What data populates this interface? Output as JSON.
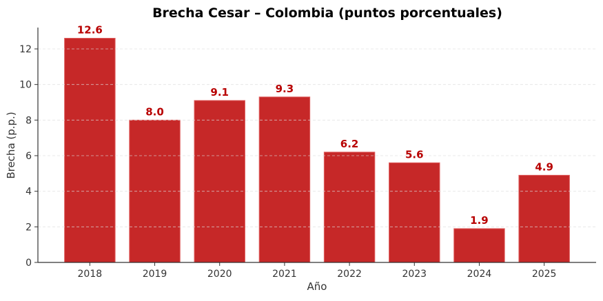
{
  "chart_data": {
    "type": "bar",
    "title": "Brecha Cesar – Colombia (puntos porcentuales)",
    "xlabel": "Año",
    "ylabel": "Brecha (p.p.)",
    "categories": [
      "2018",
      "2019",
      "2020",
      "2021",
      "2022",
      "2023",
      "2024",
      "2025"
    ],
    "values": [
      12.6,
      8.0,
      9.1,
      9.3,
      6.2,
      5.6,
      1.9,
      4.9
    ],
    "data_labels": [
      "12.6",
      "8.0",
      "9.1",
      "9.3",
      "6.2",
      "5.6",
      "1.9",
      "4.9"
    ],
    "ylim": [
      0,
      13.2
    ],
    "yticks": [
      0,
      2,
      4,
      6,
      8,
      10,
      12
    ],
    "grid": "y-dashed",
    "legend": "none",
    "colors": {
      "bar": "#c62828",
      "bar_edge": "#e06060",
      "label": "#b80000",
      "grid": "#dddddd",
      "axis": "#333333"
    }
  }
}
